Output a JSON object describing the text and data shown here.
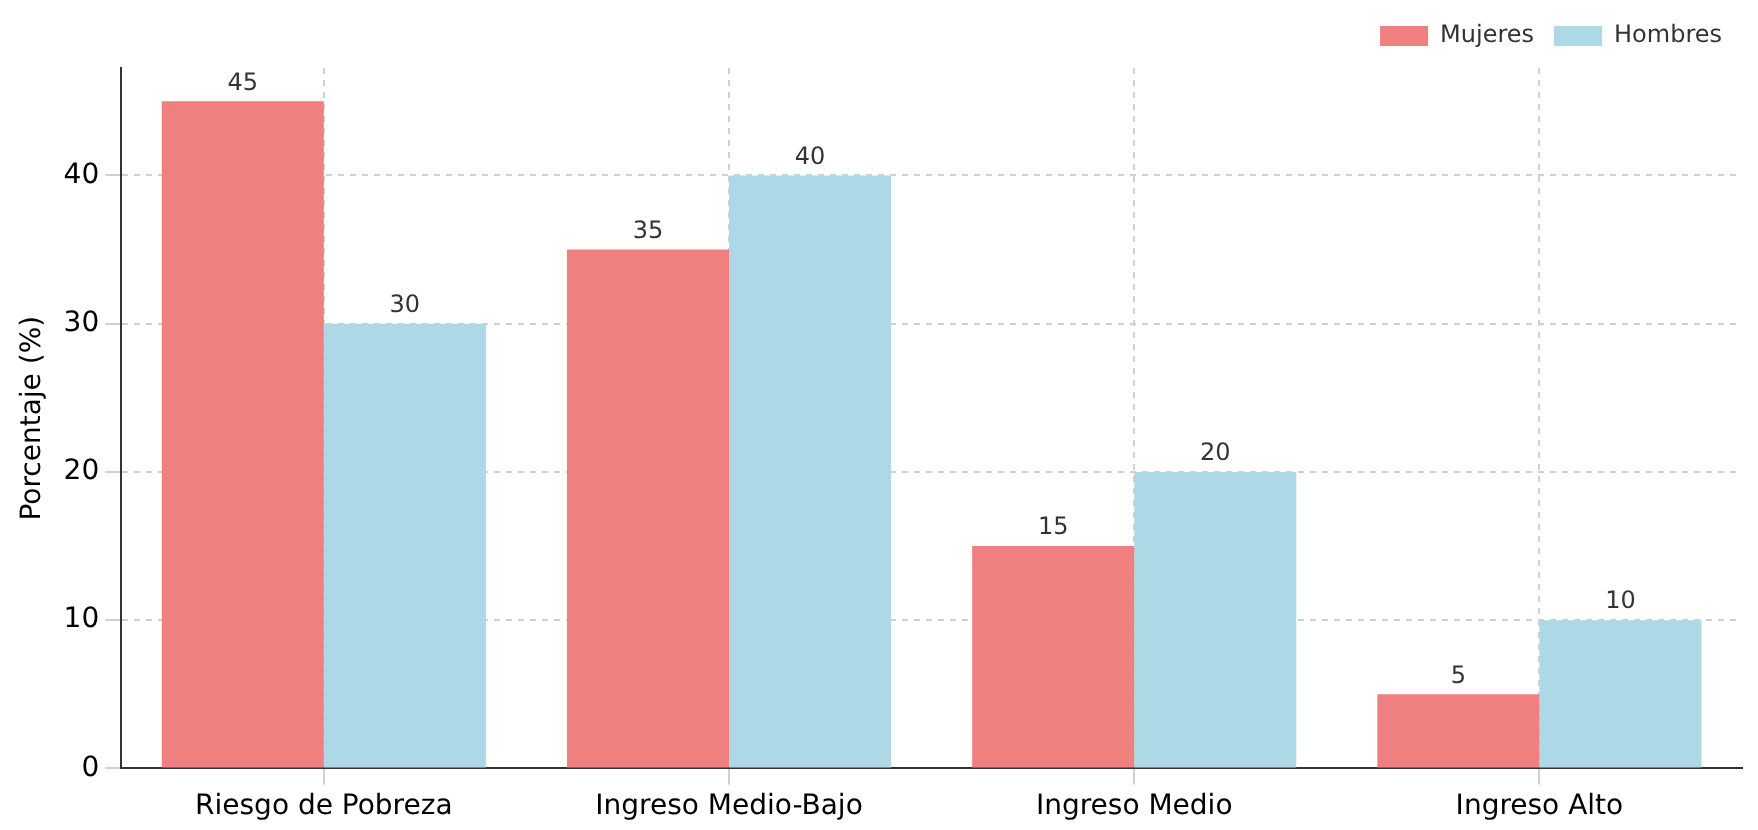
{
  "chart_data": {
    "type": "bar",
    "ylabel": "Porcentaje (%)",
    "categories": [
      "Riesgo de Pobreza",
      "Ingreso Medio-Bajo",
      "Ingreso Medio",
      "Ingreso Alto"
    ],
    "series": [
      {
        "name": "Mujeres",
        "color": "#f08080",
        "values": [
          45,
          35,
          15,
          5
        ]
      },
      {
        "name": "Hombres",
        "color": "#add8e6",
        "values": [
          30,
          40,
          20,
          10
        ]
      }
    ],
    "ylim": [
      0,
      47.25
    ],
    "yticks": [
      0,
      10,
      20,
      30,
      40
    ],
    "grid": true,
    "legend": "top right",
    "data_labels": true
  }
}
